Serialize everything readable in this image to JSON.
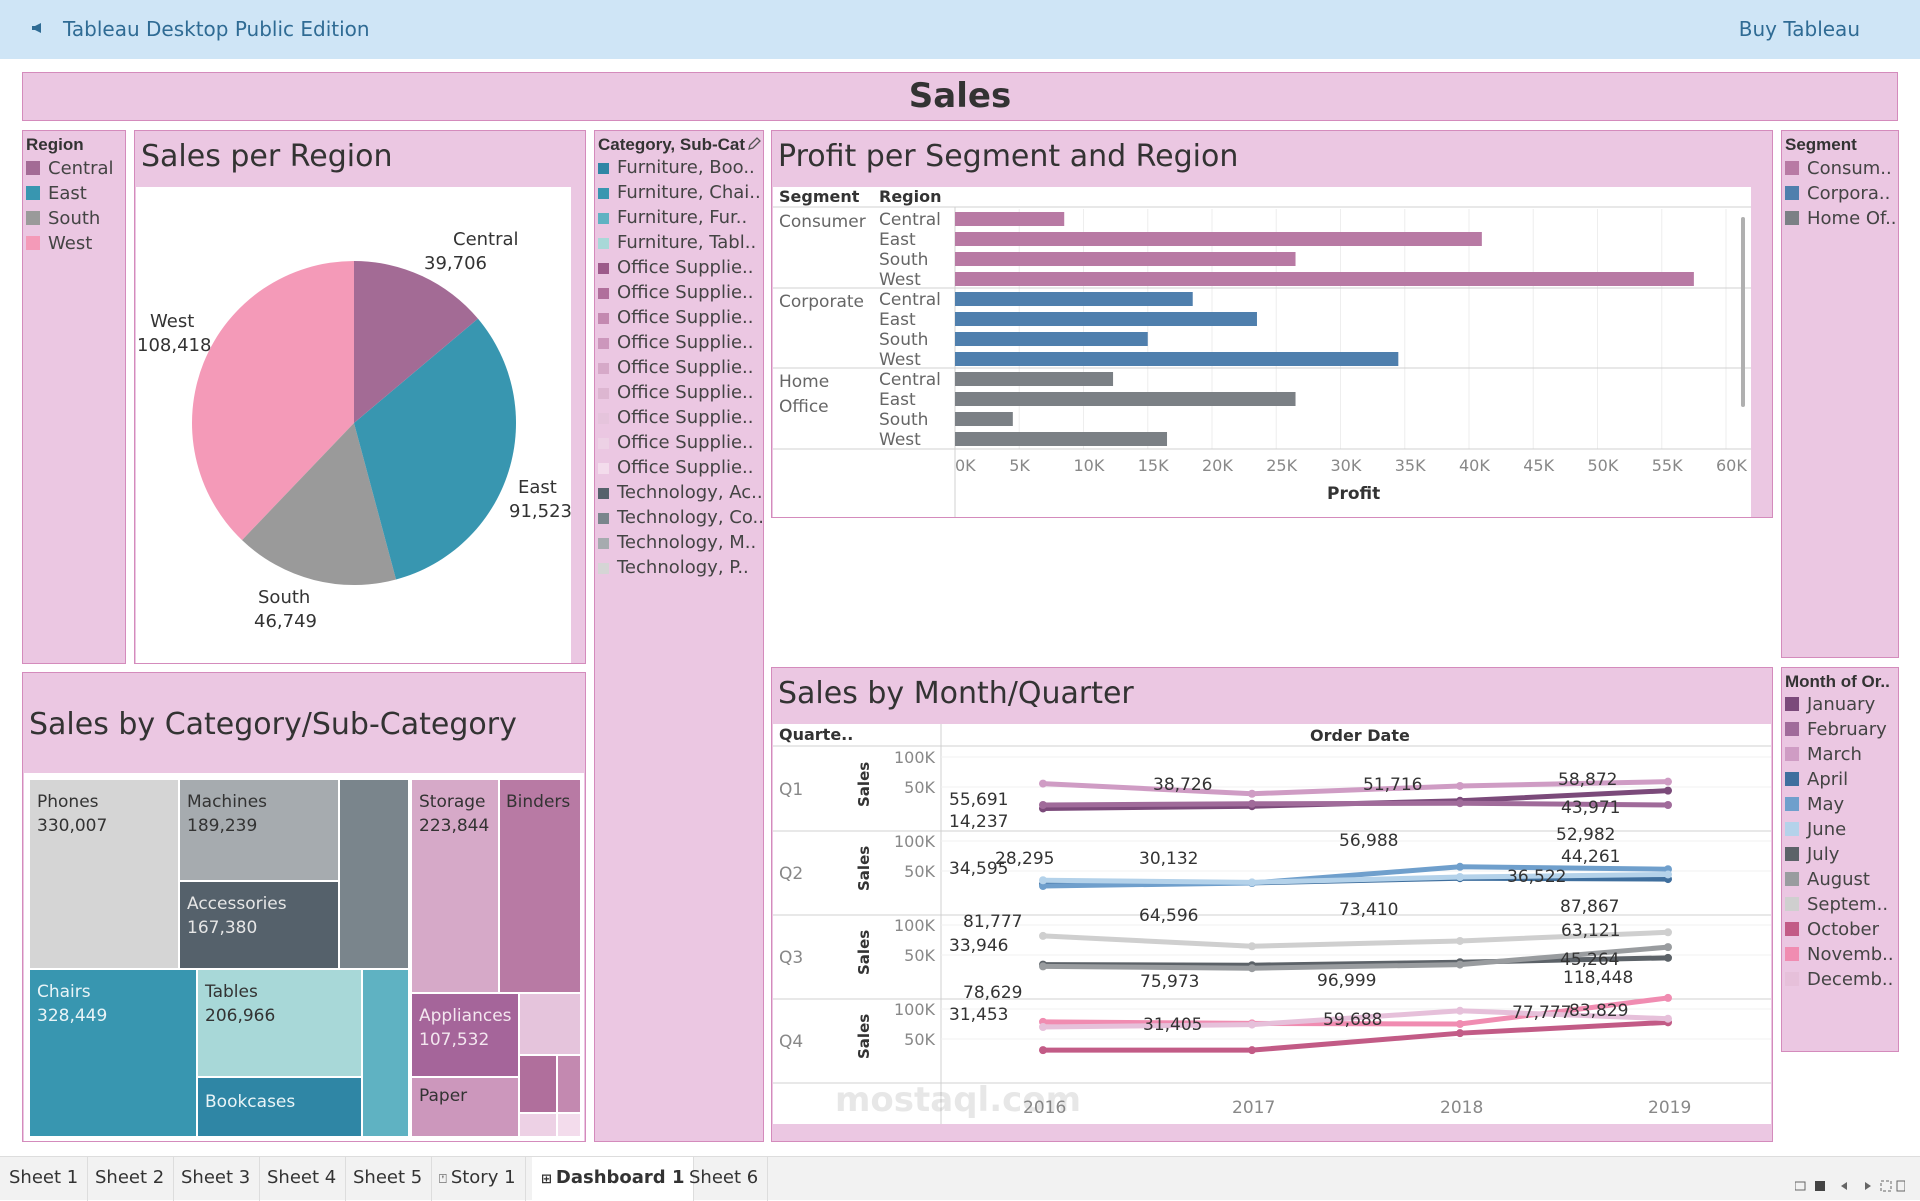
{
  "app": {
    "title": "Tableau Desktop Public Edition",
    "buy_label": "Buy Tableau"
  },
  "dashboard_title": "Sales",
  "colors": {
    "central": "#a36b95",
    "east": "#3896b0",
    "south": "#9a9a9a",
    "west": "#f49ab8",
    "consumer": "#b87aa4",
    "corporate": "#4f7fad",
    "home_office": "#7b8085"
  },
  "region_legend": {
    "title": "Region",
    "items": [
      "Central",
      "East",
      "South",
      "West"
    ]
  },
  "pie": {
    "title": "Sales per Region",
    "labels": [
      {
        "name": "Central",
        "value": "39,706"
      },
      {
        "name": "East",
        "value": "91,523"
      },
      {
        "name": "South",
        "value": "46,749"
      },
      {
        "name": "West",
        "value": "108,418"
      }
    ]
  },
  "category_legend": {
    "title": "Category, Sub-Cat",
    "items": [
      {
        "label": "Furniture, Boo..",
        "color": "#2f86a5"
      },
      {
        "label": "Furniture, Chai..",
        "color": "#3896b0"
      },
      {
        "label": "Furniture, Fur..",
        "color": "#5fb2c2"
      },
      {
        "label": "Furniture, Tabl..",
        "color": "#a8d8d8"
      },
      {
        "label": "Office Supplie..",
        "color": "#9c5a8a"
      },
      {
        "label": "Office Supplie..",
        "color": "#b06f9c"
      },
      {
        "label": "Office Supplie..",
        "color": "#c389b0"
      },
      {
        "label": "Office Supplie..",
        "color": "#cc97bc"
      },
      {
        "label": "Office Supplie..",
        "color": "#d6a9c8"
      },
      {
        "label": "Office Supplie..",
        "color": "#ddb6d1"
      },
      {
        "label": "Office Supplie..",
        "color": "#e5c4dc"
      },
      {
        "label": "Office Supplie..",
        "color": "#edd1e5"
      },
      {
        "label": "Office Supplie..",
        "color": "#f3dcec"
      },
      {
        "label": "Technology, Ac..",
        "color": "#55616b"
      },
      {
        "label": "Technology, Co..",
        "color": "#7a858c"
      },
      {
        "label": "Technology, M..",
        "color": "#a6abaf"
      },
      {
        "label": "Technology, P..",
        "color": "#d5d5d5"
      }
    ]
  },
  "treemap": {
    "title": "Sales by Category/Sub-Category",
    "tiles": [
      {
        "name": "Phones",
        "value": "330,007"
      },
      {
        "name": "Machines",
        "value": "189,239"
      },
      {
        "name": "Accessories",
        "value": "167,380"
      },
      {
        "name": "Chairs",
        "value": "328,449"
      },
      {
        "name": "Tables",
        "value": "206,966"
      },
      {
        "name": "Bookcases",
        "value": ""
      },
      {
        "name": "Storage",
        "value": "223,844"
      },
      {
        "name": "Binders",
        "value": ""
      },
      {
        "name": "Appliances",
        "value": "107,532"
      },
      {
        "name": "Paper",
        "value": ""
      }
    ]
  },
  "profit_chart": {
    "title": "Profit per Segment and Region",
    "col_segment": "Segment",
    "col_region": "Region",
    "x_label": "Profit",
    "ticks": [
      "0K",
      "5K",
      "10K",
      "15K",
      "20K",
      "25K",
      "30K",
      "35K",
      "40K",
      "45K",
      "50K",
      "55K",
      "60K"
    ],
    "groups": [
      {
        "segment": "Consumer",
        "rows": [
          "Central",
          "East",
          "South",
          "West"
        ]
      },
      {
        "segment": "Corporate",
        "rows": [
          "Central",
          "East",
          "South",
          "West"
        ]
      },
      {
        "segment": "Home Office",
        "rows": [
          "Central",
          "East",
          "South",
          "West"
        ]
      }
    ]
  },
  "segment_legend": {
    "title": "Segment",
    "items": [
      "Consum..",
      "Corpora..",
      "Home Of.."
    ]
  },
  "line_chart": {
    "title": "Sales by Month/Quarter",
    "col_quarter": "Quarte..",
    "col_header": "Order Date",
    "y_label": "Sales",
    "y_ticks": [
      "100K",
      "50K"
    ],
    "x_ticks": [
      "2016",
      "2017",
      "2018",
      "2019"
    ],
    "quarters": [
      "Q1",
      "Q2",
      "Q3",
      "Q4"
    ]
  },
  "month_legend": {
    "title": "Month of Or..",
    "items": [
      {
        "label": "January",
        "color": "#7b4a7a"
      },
      {
        "label": "February",
        "color": "#a06b9a"
      },
      {
        "label": "March",
        "color": "#cf9cc4"
      },
      {
        "label": "April",
        "color": "#3f6f9e"
      },
      {
        "label": "May",
        "color": "#6f9fcc"
      },
      {
        "label": "June",
        "color": "#b4d2ea"
      },
      {
        "label": "July",
        "color": "#5c6268"
      },
      {
        "label": "August",
        "color": "#999c9f"
      },
      {
        "label": "Septem..",
        "color": "#cfcfcf"
      },
      {
        "label": "October",
        "color": "#c25b86"
      },
      {
        "label": "Novemb..",
        "color": "#f08cb1"
      },
      {
        "label": "Decemb..",
        "color": "#e6c0da"
      }
    ]
  },
  "chart_data": [
    {
      "type": "pie",
      "title": "Sales per Region",
      "categories": [
        "Central",
        "East",
        "South",
        "West"
      ],
      "values": [
        39706,
        91523,
        46749,
        108418
      ],
      "colors": [
        "#a36b95",
        "#3896b0",
        "#9a9a9a",
        "#f49ab8"
      ]
    },
    {
      "type": "bar",
      "title": "Profit per Segment and Region",
      "xlabel": "Profit",
      "xlim": [
        0,
        60000
      ],
      "categories": [
        "Central",
        "East",
        "South",
        "West"
      ],
      "series": [
        {
          "name": "Consumer",
          "values": [
            8500,
            41000,
            26500,
            57500
          ]
        },
        {
          "name": "Corporate",
          "values": [
            18500,
            23500,
            15000,
            34500
          ]
        },
        {
          "name": "Home Office",
          "values": [
            12300,
            26500,
            4500,
            16500
          ]
        }
      ]
    },
    {
      "type": "line",
      "title": "Sales by Month/Quarter",
      "ylabel": "Sales",
      "x": [
        "2016",
        "2017",
        "2018",
        "2019"
      ],
      "ylim": [
        0,
        120000
      ],
      "series": [
        {
          "name": "January",
          "quarter": "Q1",
          "values": [
            14237,
            18000,
            27000,
            43971
          ]
        },
        {
          "name": "February",
          "quarter": "Q1",
          "values": [
            20000,
            22000,
            23000,
            20000
          ]
        },
        {
          "name": "March",
          "quarter": "Q1",
          "values": [
            55691,
            38726,
            51716,
            58872
          ]
        },
        {
          "name": "April",
          "quarter": "Q2",
          "values": [
            28295,
            30132,
            38000,
            36522
          ]
        },
        {
          "name": "May",
          "quarter": "Q2",
          "values": [
            25000,
            30000,
            56988,
            52982
          ]
        },
        {
          "name": "June",
          "quarter": "Q2",
          "values": [
            34595,
            31000,
            40000,
            44261
          ]
        },
        {
          "name": "July",
          "quarter": "Q3",
          "values": [
            33946,
            33000,
            38000,
            45264
          ]
        },
        {
          "name": "August",
          "quarter": "Q3",
          "values": [
            31000,
            28000,
            34000,
            63121
          ]
        },
        {
          "name": "September",
          "quarter": "Q3",
          "values": [
            81777,
            64596,
            73410,
            87867
          ]
        },
        {
          "name": "October",
          "quarter": "Q4",
          "values": [
            31453,
            31405,
            59688,
            77777
          ]
        },
        {
          "name": "November",
          "quarter": "Q4",
          "values": [
            78629,
            75973,
            75000,
            118448
          ]
        },
        {
          "name": "December",
          "quarter": "Q4",
          "values": [
            70000,
            74000,
            96999,
            83829
          ]
        }
      ]
    }
  ],
  "line_labels": [
    {
      "q": 0,
      "text": "55,691"
    },
    {
      "q": 0,
      "text": "14,237"
    },
    {
      "q": 0,
      "text": "38,726"
    },
    {
      "q": 0,
      "text": "51,716"
    },
    {
      "q": 0,
      "text": "58,872"
    },
    {
      "q": 0,
      "text": "43,971"
    },
    {
      "q": 1,
      "text": "34,595"
    },
    {
      "q": 1,
      "text": "28,295"
    },
    {
      "q": 1,
      "text": "30,132"
    },
    {
      "q": 1,
      "text": "56,988"
    },
    {
      "q": 1,
      "text": "52,982"
    },
    {
      "q": 1,
      "text": "44,261"
    },
    {
      "q": 1,
      "text": "36,522"
    },
    {
      "q": 2,
      "text": "81,777"
    },
    {
      "q": 2,
      "text": "33,946"
    },
    {
      "q": 2,
      "text": "64,596"
    },
    {
      "q": 2,
      "text": "73,410"
    },
    {
      "q": 2,
      "text": "87,867"
    },
    {
      "q": 2,
      "text": "63,121"
    },
    {
      "q": 2,
      "text": "45,264"
    },
    {
      "q": 3,
      "text": "78,629"
    },
    {
      "q": 3,
      "text": "31,453"
    },
    {
      "q": 3,
      "text": "75,973"
    },
    {
      "q": 3,
      "text": "31,405"
    },
    {
      "q": 3,
      "text": "96,999"
    },
    {
      "q": 3,
      "text": "59,688"
    },
    {
      "q": 3,
      "text": "118,448"
    },
    {
      "q": 3,
      "text": "77,777"
    },
    {
      "q": 3,
      "text": "83,829"
    }
  ],
  "tabs": [
    "Sheet 1",
    "Sheet 2",
    "Sheet 3",
    "Sheet 4",
    "Sheet 5",
    "Story 1",
    "Dashboard 1",
    "Sheet 6"
  ],
  "watermark": "mostaql.com"
}
